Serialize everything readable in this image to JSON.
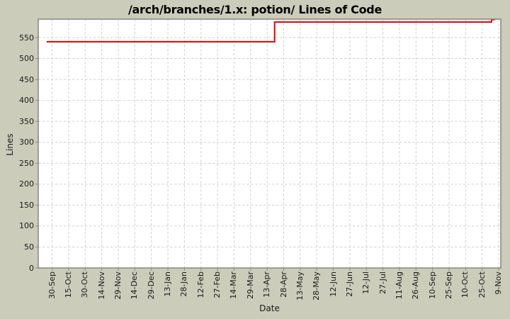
{
  "chart_data": {
    "type": "line",
    "title": "/arch/branches/1.x: potion/ Lines of Code",
    "xlabel": "Date",
    "ylabel": "Lines",
    "x_tick_labels": [
      "30-Sep",
      "15-Oct",
      "30-Oct",
      "14-Nov",
      "29-Nov",
      "14-Dec",
      "29-Dec",
      "13-Jan",
      "28-Jan",
      "12-Feb",
      "27-Feb",
      "14-Mar",
      "29-Mar",
      "13-Apr",
      "28-Apr",
      "13-May",
      "28-May",
      "12-Jun",
      "27-Jun",
      "12-Jul",
      "27-Jul",
      "11-Aug",
      "26-Aug",
      "10-Sep",
      "25-Sep",
      "10-Oct",
      "25-Oct",
      "9-Nov"
    ],
    "y_ticks": [
      0,
      50,
      100,
      150,
      200,
      250,
      300,
      350,
      400,
      450,
      500,
      550
    ],
    "ylim": [
      0,
      594
    ],
    "grid": "dashed",
    "legend": "none",
    "colors": {
      "background": "#cbccba",
      "plot_bg": "#ffffff",
      "gridline": "#d2d2d2",
      "border": "#87877f",
      "tick": "#8a8a82",
      "line": "#dd0000"
    },
    "series": [
      {
        "name": "Lines of Code",
        "color": "#dd0000",
        "steps": [
          {
            "from": "30-Sep",
            "to": "20-Apr",
            "value": 540
          },
          {
            "from": "20-Apr",
            "to": "4-Nov",
            "value": 587
          },
          {
            "from": "4-Nov",
            "to": "9-Nov",
            "value": 593
          }
        ],
        "path_u_v": [
          [
            0.018,
            540
          ],
          [
            0.511,
            540
          ],
          [
            0.511,
            587
          ],
          [
            0.98,
            587
          ],
          [
            0.98,
            593
          ],
          [
            0.988,
            593
          ]
        ]
      }
    ]
  }
}
